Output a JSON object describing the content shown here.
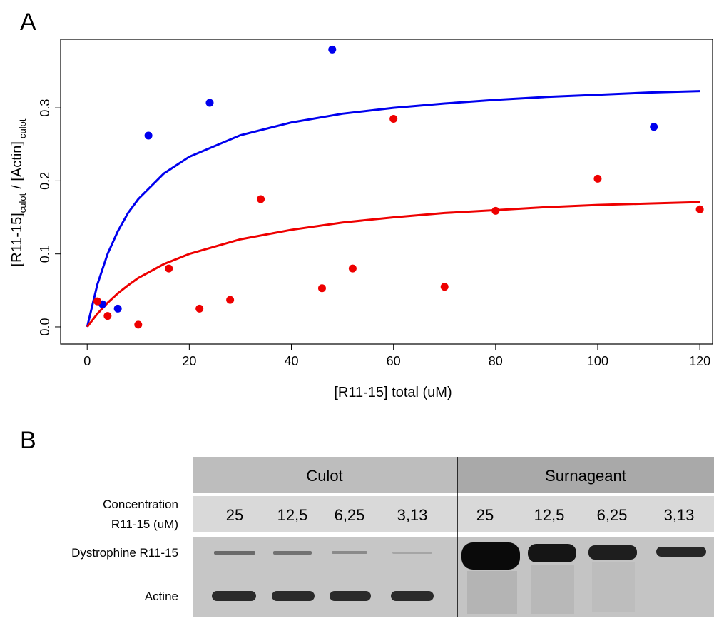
{
  "panel_labels": [
    "A",
    "B"
  ],
  "chart_data": {
    "type": "scatter",
    "x_label": "[R11-15] total (uM)",
    "y_label": [
      "[R11-15]",
      "culot",
      "/ [Actin]",
      "culot"
    ],
    "xlim": [
      -5.2,
      122.5
    ],
    "ylim": [
      -0.0235,
      0.394
    ],
    "xticks": [
      0,
      20,
      40,
      60,
      80,
      100,
      120
    ],
    "yticks": [
      {
        "value": 0,
        "label": "0.0"
      },
      0.1,
      0.2,
      0.3
    ],
    "fit_x": [
      0,
      2,
      4,
      6,
      8,
      10,
      15,
      20,
      30,
      40,
      50,
      60,
      70,
      80,
      90,
      100,
      110,
      120
    ],
    "series": [
      {
        "color": "#0000ee",
        "x": [
          3,
          6,
          12,
          24,
          48,
          111
        ],
        "values": [
          0.031,
          0.025,
          0.262,
          0.307,
          0.38,
          0.274
        ],
        "fit": [
          0,
          0.0583,
          0.1,
          0.131,
          0.156,
          0.175,
          0.21,
          0.233,
          0.2625,
          0.28,
          0.292,
          0.3,
          0.306,
          0.311,
          0.315,
          0.318,
          0.321,
          0.323
        ]
      },
      {
        "color": "#ee0000",
        "x": [
          2,
          4,
          10,
          16,
          22,
          28,
          34,
          46,
          52,
          60,
          70,
          80,
          100,
          120
        ],
        "values": [
          0.035,
          0.015,
          0.003,
          0.08,
          0.025,
          0.037,
          0.175,
          0.053,
          0.08,
          0.285,
          0.055,
          0.159,
          0.203,
          0.161
        ],
        "fit": [
          0,
          0.018,
          0.033,
          0.046,
          0.057,
          0.067,
          0.086,
          0.1,
          0.12,
          0.133,
          0.143,
          0.15,
          0.156,
          0.16,
          0.164,
          0.167,
          0.169,
          0.171
        ]
      }
    ]
  },
  "gel": {
    "groups": [
      "Culot",
      "Surnageant"
    ],
    "concentration_label": [
      "Concentration",
      "R11-15 (uM)"
    ],
    "concentrations": [
      "25",
      "12,5",
      "6,25",
      "3,13",
      "25",
      "12,5",
      "6,25",
      "3,13"
    ],
    "rows": [
      "Dystrophine R11-15",
      "Actine"
    ]
  }
}
